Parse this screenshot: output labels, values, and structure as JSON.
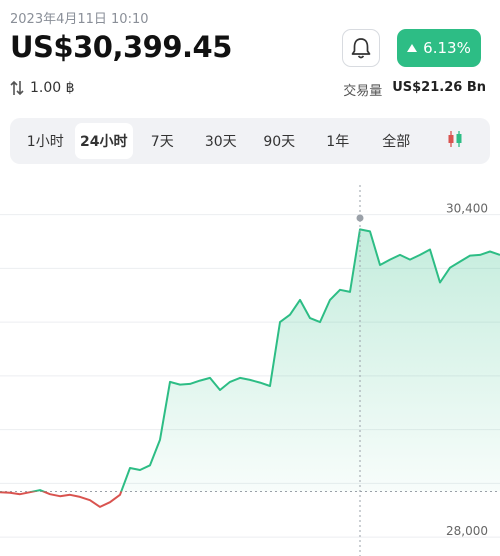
{
  "header": {
    "date": "2023年4月11日 10:10",
    "price": "US$30,399.45",
    "change": "6.13%",
    "amount": "1.00 ฿",
    "volume_label": "交易量",
    "volume": "US$21.26 Bn"
  },
  "tabs": [
    "1小时",
    "24小时",
    "7天",
    "30天",
    "90天",
    "1年",
    "全部"
  ],
  "active_tab": 1,
  "chart_data": {
    "type": "line",
    "color": "#2dbd85",
    "down_color": "#d9534f",
    "baseline": 28340,
    "crosshair_index": 36,
    "values": [
      28335,
      28330,
      28320,
      28335,
      28350,
      28320,
      28305,
      28315,
      28300,
      28275,
      28225,
      28260,
      28315,
      28515,
      28500,
      28535,
      28725,
      29155,
      29135,
      29140,
      29165,
      29185,
      29095,
      29155,
      29185,
      29170,
      29150,
      29125,
      29600,
      29655,
      29765,
      29630,
      29600,
      29765,
      29840,
      29825,
      30290,
      30275,
      30025,
      30065,
      30100,
      30065,
      30100,
      30140,
      29895,
      30005,
      30050,
      30095,
      30100,
      30125,
      30100
    ],
    "ylim": [
      27860,
      30620
    ],
    "yticks": [
      {
        "value": 28000,
        "label": "28,000"
      },
      {
        "value": 28400,
        "label": null
      },
      {
        "value": 28800,
        "label": null
      },
      {
        "value": 29200,
        "label": null
      },
      {
        "value": 29600,
        "label": null
      },
      {
        "value": 30000,
        "label": null
      },
      {
        "value": 30400,
        "label": "30,400"
      }
    ],
    "grid": true
  }
}
